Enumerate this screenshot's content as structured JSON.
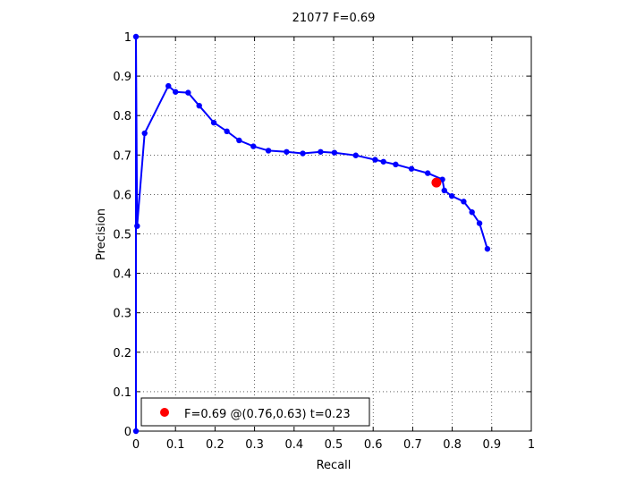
{
  "chart_data": {
    "type": "line",
    "title": "21077 F=0.69",
    "xlabel": "Recall",
    "ylabel": "Precision",
    "xlim": [
      0,
      1
    ],
    "ylim": [
      0,
      1
    ],
    "xticks": [
      0,
      0.1,
      0.2,
      0.3,
      0.4,
      0.5,
      0.6,
      0.7,
      0.8,
      0.9,
      1
    ],
    "xtick_labels": [
      "0",
      "0.1",
      "0.2",
      "0.3",
      "0.4",
      "0.5",
      "0.6",
      "0.7",
      "0.8",
      "0.9",
      "1"
    ],
    "yticks": [
      0,
      0.1,
      0.2,
      0.3,
      0.4,
      0.5,
      0.6,
      0.7,
      0.8,
      0.9,
      1
    ],
    "ytick_labels": [
      "0",
      "0.1",
      "0.2",
      "0.3",
      "0.4",
      "0.5",
      "0.6",
      "0.7",
      "0.8",
      "0.9",
      "1"
    ],
    "grid": true,
    "series": [
      {
        "color": "#0000ff",
        "points": [
          [
            0.0,
            0.0
          ],
          [
            0.0,
            1.0
          ],
          [
            0.003,
            0.52
          ],
          [
            0.022,
            0.755
          ],
          [
            0.082,
            0.875
          ],
          [
            0.1,
            0.86
          ],
          [
            0.132,
            0.858
          ],
          [
            0.16,
            0.825
          ],
          [
            0.197,
            0.782
          ],
          [
            0.23,
            0.76
          ],
          [
            0.261,
            0.737
          ],
          [
            0.297,
            0.722
          ],
          [
            0.335,
            0.711
          ],
          [
            0.381,
            0.708
          ],
          [
            0.422,
            0.704
          ],
          [
            0.467,
            0.708
          ],
          [
            0.502,
            0.706
          ],
          [
            0.556,
            0.699
          ],
          [
            0.605,
            0.688
          ],
          [
            0.626,
            0.683
          ],
          [
            0.657,
            0.676
          ],
          [
            0.697,
            0.665
          ],
          [
            0.738,
            0.654
          ],
          [
            0.775,
            0.638
          ],
          [
            0.78,
            0.61
          ],
          [
            0.799,
            0.596
          ],
          [
            0.829,
            0.582
          ],
          [
            0.85,
            0.555
          ],
          [
            0.869,
            0.527
          ],
          [
            0.889,
            0.462
          ]
        ]
      }
    ],
    "best_point": {
      "recall": 0.76,
      "precision": 0.63,
      "color": "#ff0000"
    },
    "legend": {
      "position": "bottom-left",
      "entries": [
        "F=0.69 @(0.76,0.63) t=0.23"
      ]
    }
  }
}
